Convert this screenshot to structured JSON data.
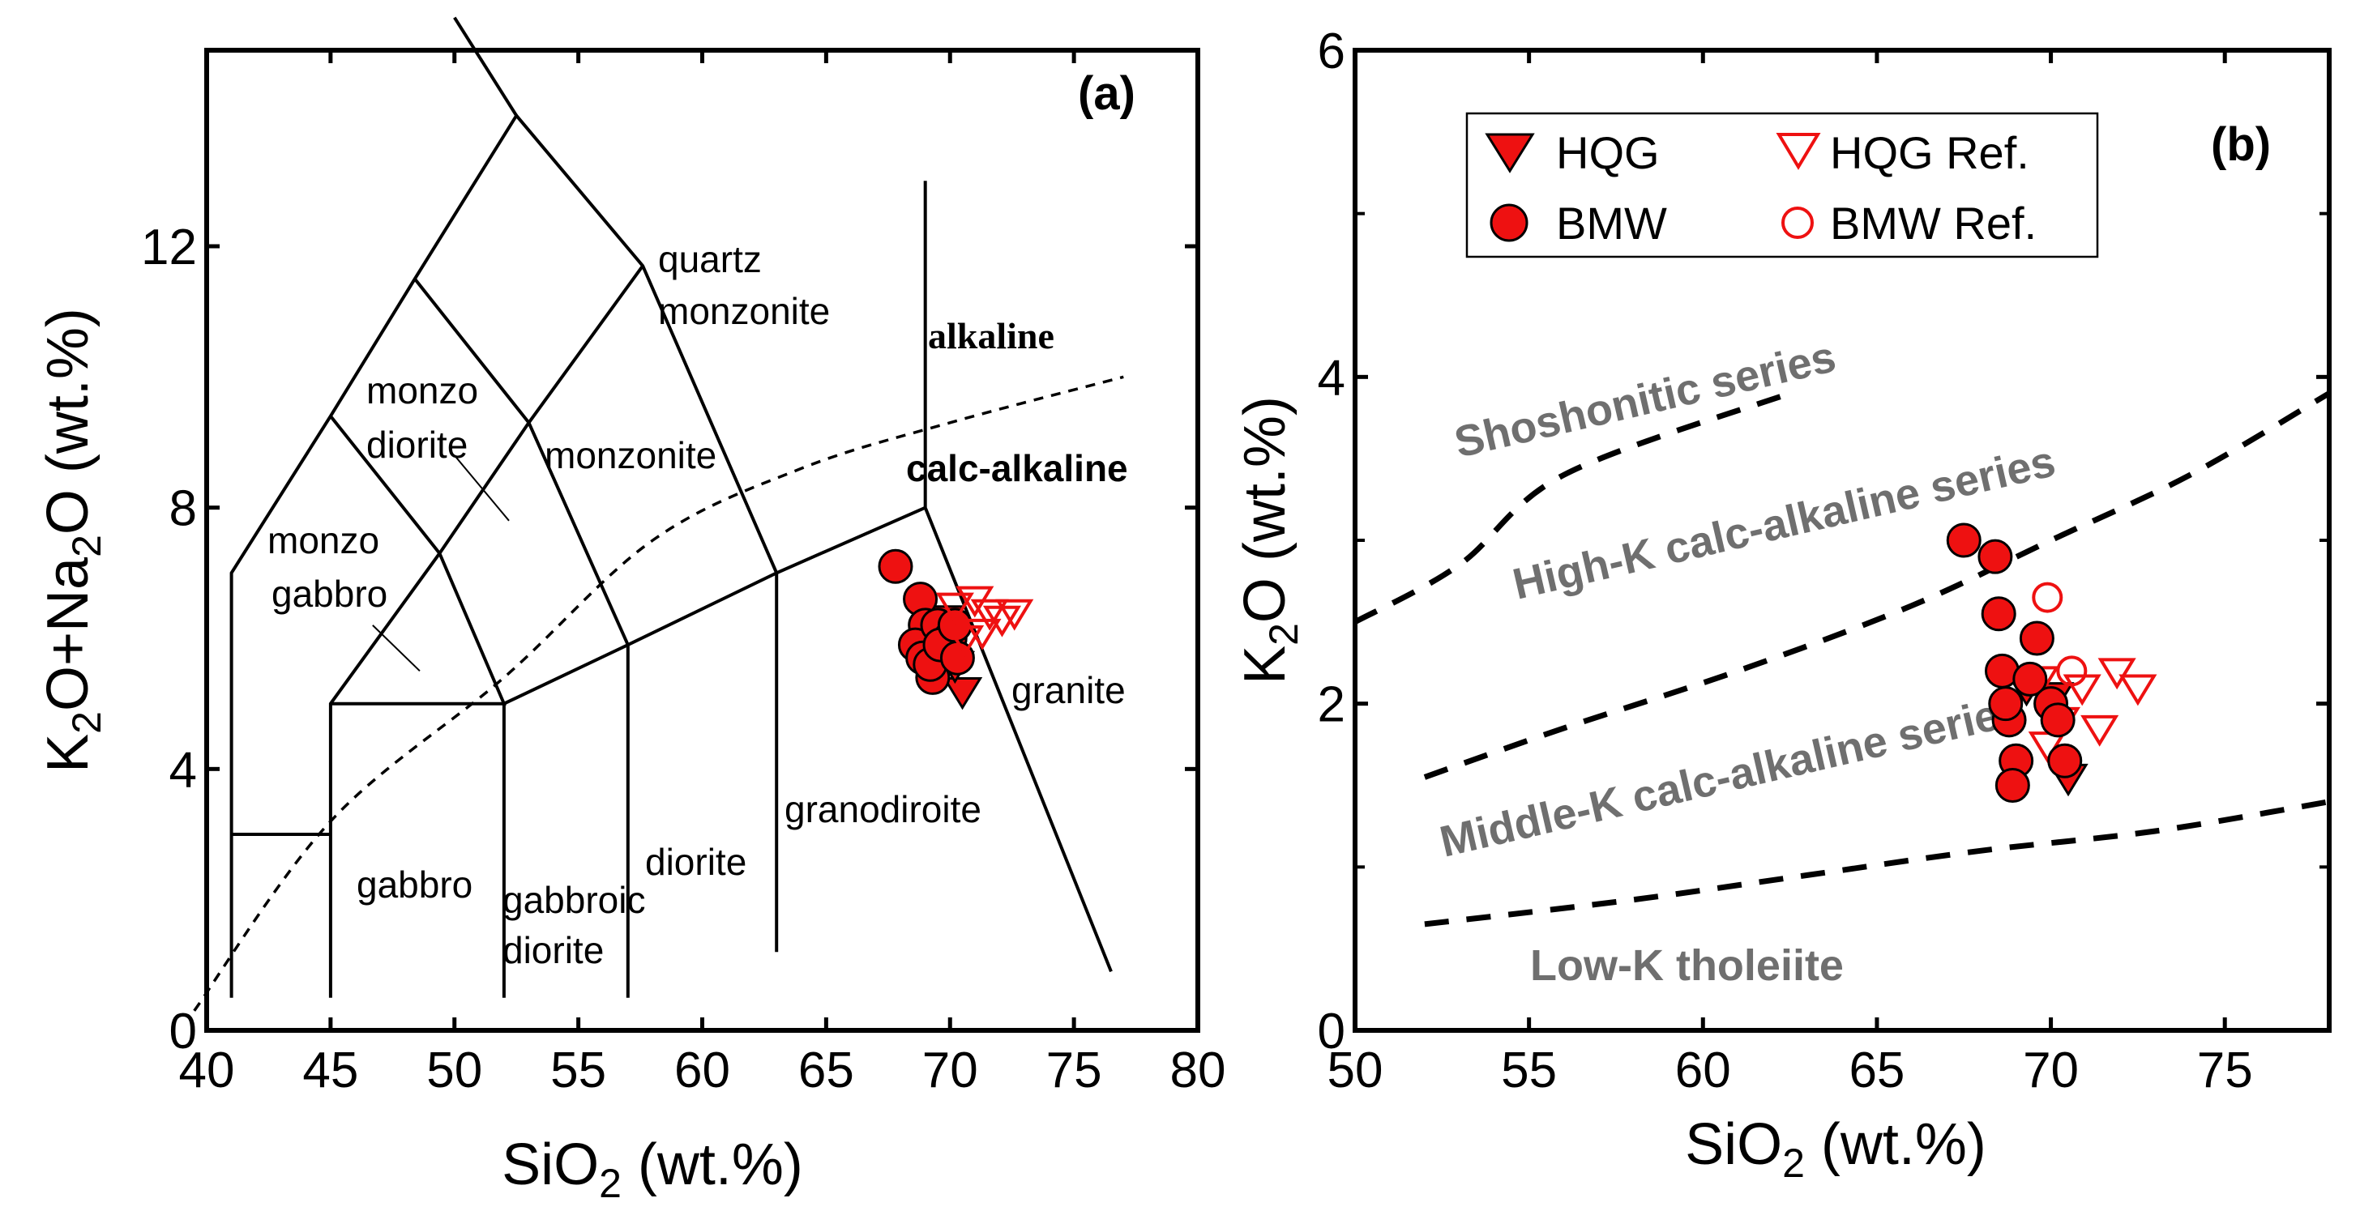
{
  "chart_data": [
    {
      "type": "scatter",
      "panel": "(a)",
      "xlabel": "SiO2 (wt.%)",
      "ylabel": "K2O+Na2O (wt.%)",
      "xlim": [
        40,
        80
      ],
      "ylim": [
        0,
        15
      ],
      "xticks": [
        "40",
        "45",
        "50",
        "55",
        "60",
        "65",
        "70",
        "75",
        "80"
      ],
      "yticks": [
        "0",
        "4",
        "8",
        "12"
      ],
      "field_boundaries": [
        [
          [
            41,
            0.5
          ],
          [
            41,
            7
          ],
          [
            45,
            9.4
          ],
          [
            48.4,
            11.5
          ],
          [
            52.5,
            14
          ],
          [
            57.6,
            11.7
          ],
          [
            63,
            7
          ],
          [
            69,
            8
          ]
        ],
        [
          [
            45,
            0.5
          ],
          [
            45,
            5
          ],
          [
            49.4,
            7.3
          ],
          [
            53,
            9.3
          ],
          [
            57.6,
            11.7
          ]
        ],
        [
          [
            52,
            0.5
          ],
          [
            52,
            5
          ],
          [
            57,
            5.9
          ],
          [
            63,
            7
          ]
        ],
        [
          [
            45,
            5
          ],
          [
            52,
            5
          ],
          [
            49.4,
            7.3
          ],
          [
            45,
            9.4
          ]
        ],
        [
          [
            57,
            0.5
          ],
          [
            57,
            5.9
          ],
          [
            53,
            9.3
          ],
          [
            48.4,
            11.5
          ]
        ],
        [
          [
            63,
            1.2
          ],
          [
            63,
            7
          ]
        ],
        [
          [
            69,
            13
          ],
          [
            69,
            8
          ],
          [
            76.5,
            0.9
          ]
        ],
        [
          [
            41,
            3
          ],
          [
            45,
            3
          ]
        ],
        [
          [
            52.5,
            14
          ],
          [
            50,
            15.5
          ]
        ]
      ],
      "alkaline_boundary": [
        [
          39.5,
          0.3
        ],
        [
          45,
          3.2
        ],
        [
          52,
          5.4
        ],
        [
          58,
          7.5
        ],
        [
          64,
          8.6
        ],
        [
          70,
          9.3
        ],
        [
          77,
          10.0
        ]
      ],
      "field_labels": [
        "quartz",
        "monzonite",
        "monzo",
        "diorite",
        "monzonite",
        "monzo",
        "gabbro",
        "granite",
        "granodiroite",
        "diorite",
        "gabbro",
        "gabbroic",
        "diorite"
      ],
      "series_labels": [
        "alkaline",
        "calc-alkaline"
      ],
      "series": [
        {
          "name": "HQG",
          "marker": "filled-triangle-down",
          "color": "#ee1111",
          "x": [
            70.0,
            70.5,
            70.2,
            69.8
          ],
          "y": [
            6.0,
            5.2,
            5.6,
            6.3
          ]
        },
        {
          "name": "BMW",
          "marker": "filled-circle",
          "color": "#ee1111",
          "x": [
            67.8,
            68.8,
            69.0,
            68.6,
            69.3,
            68.9,
            69.5,
            70.0,
            69.2,
            69.6,
            70.2,
            70.3
          ],
          "y": [
            7.1,
            6.6,
            6.2,
            5.9,
            5.4,
            5.7,
            6.2,
            6.0,
            5.6,
            5.9,
            6.2,
            5.7
          ]
        },
        {
          "name": "HQG Ref.",
          "marker": "open-triangle-down",
          "color": "#ee1111",
          "x": [
            70.2,
            71.0,
            71.6,
            72.1,
            72.6,
            70.6,
            71.3
          ],
          "y": [
            6.5,
            6.6,
            6.4,
            6.3,
            6.4,
            6.0,
            6.1
          ]
        }
      ]
    },
    {
      "type": "scatter",
      "panel": "(b)",
      "xlabel": "SiO2 (wt.%)",
      "ylabel": "K2O (wt.%)",
      "xlim": [
        50,
        78
      ],
      "ylim": [
        0,
        6
      ],
      "xticks": [
        "50",
        "55",
        "60",
        "65",
        "70",
        "75"
      ],
      "yticks": [
        "0",
        "2",
        "4",
        "6"
      ],
      "boundaries": [
        [
          [
            50,
            2.5
          ],
          [
            53,
            2.85
          ],
          [
            56,
            3.4
          ],
          [
            62.5,
            3.9
          ]
        ],
        [
          [
            52,
            1.55
          ],
          [
            56,
            1.85
          ],
          [
            61,
            2.2
          ],
          [
            66,
            2.6
          ],
          [
            70,
            3.0
          ],
          [
            74,
            3.4
          ],
          [
            78,
            3.9
          ]
        ],
        [
          [
            52,
            0.65
          ],
          [
            58,
            0.8
          ],
          [
            63,
            0.95
          ],
          [
            68,
            1.1
          ],
          [
            73,
            1.22
          ],
          [
            78,
            1.4
          ]
        ]
      ],
      "region_labels": [
        "Shoshonitic series",
        "High-K calc-alkaline series",
        "Middle-K calc-alkaline series",
        "Low-K tholeiite"
      ],
      "legend": [
        "HQG",
        "HQG Ref.",
        "BMW",
        "BMW Ref."
      ],
      "series": [
        {
          "name": "HQG",
          "marker": "filled-triangle-down",
          "color": "#ee1111",
          "x": [
            69.3,
            70.1,
            70.5
          ],
          "y": [
            2.1,
            2.05,
            1.55
          ]
        },
        {
          "name": "HQG Ref.",
          "marker": "open-triangle-down",
          "color": "#ee1111",
          "x": [
            69.7,
            70.3,
            70.9,
            71.4,
            71.9,
            72.5,
            69.9
          ],
          "y": [
            2.15,
            1.9,
            2.1,
            1.85,
            2.2,
            2.1,
            1.75
          ]
        },
        {
          "name": "BMW",
          "marker": "filled-circle",
          "color": "#ee1111",
          "x": [
            67.5,
            68.4,
            68.5,
            68.6,
            68.8,
            69.0,
            68.9,
            68.7,
            69.6,
            69.4,
            70.0,
            70.2,
            70.4
          ],
          "y": [
            3.0,
            2.9,
            2.55,
            2.2,
            1.9,
            1.65,
            1.5,
            2.0,
            2.4,
            2.15,
            2.0,
            1.9,
            1.65
          ]
        },
        {
          "name": "BMW Ref.",
          "marker": "open-circle",
          "color": "#ee1111",
          "x": [
            69.9,
            70.6
          ],
          "y": [
            2.65,
            2.2
          ]
        }
      ]
    }
  ]
}
